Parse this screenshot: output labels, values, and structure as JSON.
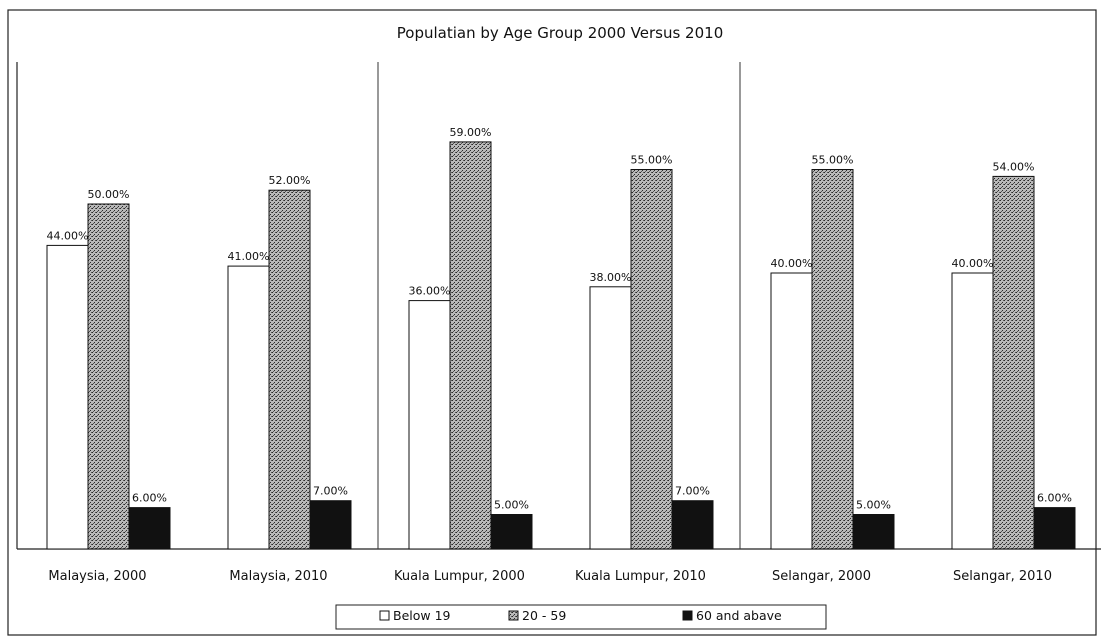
{
  "chart_data": {
    "type": "bar",
    "title": "Populatian by Age Group 2000 Versus 2010",
    "xlabel": "",
    "ylabel": "",
    "ylim": [
      0,
      70
    ],
    "grid": false,
    "legend_position": "bottom",
    "categories": [
      "Malaysia, 2000",
      "Malaysia, 2010",
      "Kuala Lumpur, 2000",
      "Kuala Lumpur, 2010",
      "Selangar, 2000",
      "Selangar, 2010"
    ],
    "series": [
      {
        "name": "Below 19",
        "values": [
          44,
          41,
          36,
          38,
          40,
          40
        ],
        "labels": [
          "44.00%",
          "41.00%",
          "36.00%",
          "38.00%",
          "40.00%",
          "40.00%"
        ],
        "pattern": "white"
      },
      {
        "name": "20 - 59",
        "values": [
          50,
          52,
          59,
          55,
          55,
          54
        ],
        "labels": [
          "50.00%",
          "52.00%",
          "59.00%",
          "55.00%",
          "55.00%",
          "54.00%"
        ],
        "pattern": "stipple"
      },
      {
        "name": "60 and abave",
        "values": [
          6,
          7,
          5,
          7,
          5,
          6
        ],
        "labels": [
          "6.00%",
          "7.00%",
          "5.00%",
          "7.00%",
          "5.00%",
          "6.00%"
        ],
        "pattern": "black"
      }
    ]
  },
  "colors": {
    "frame": "#222222",
    "bar_white": "#ffffff",
    "bar_stipple_bg": "#b9b9b9",
    "bar_stipple_dot": "#2a2a2a",
    "bar_black": "#111111"
  }
}
